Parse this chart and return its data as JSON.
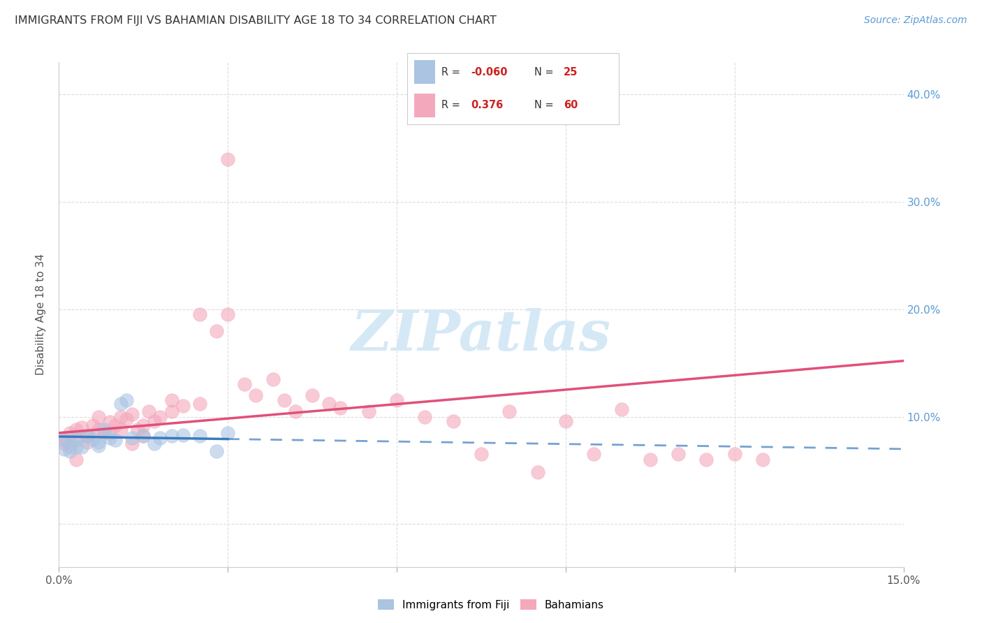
{
  "title": "IMMIGRANTS FROM FIJI VS BAHAMIAN DISABILITY AGE 18 TO 34 CORRELATION CHART",
  "source": "Source: ZipAtlas.com",
  "ylabel": "Disability Age 18 to 34",
  "xlim": [
    0.0,
    0.15
  ],
  "ylim": [
    -0.04,
    0.43
  ],
  "fiji_R": -0.06,
  "fiji_N": 25,
  "bahamian_R": 0.376,
  "bahamian_N": 60,
  "fiji_color": "#aac4e2",
  "bahamian_color": "#f4a8bc",
  "fiji_line_color": "#3a7bbf",
  "bahamian_line_color": "#e0507a",
  "background_color": "#ffffff",
  "grid_color": "#dddddd",
  "watermark_text": "ZIPatlas",
  "watermark_color": "#d5e8f5",
  "fiji_scatter_x": [
    0.001,
    0.002,
    0.003,
    0.004,
    0.005,
    0.006,
    0.007,
    0.007,
    0.008,
    0.009,
    0.01,
    0.011,
    0.012,
    0.013,
    0.015,
    0.017,
    0.018,
    0.02,
    0.022,
    0.025,
    0.028,
    0.03,
    0.001,
    0.002,
    0.003
  ],
  "fiji_scatter_y": [
    0.078,
    0.075,
    0.08,
    0.072,
    0.082,
    0.079,
    0.073,
    0.076,
    0.088,
    0.08,
    0.078,
    0.112,
    0.115,
    0.08,
    0.082,
    0.075,
    0.08,
    0.082,
    0.083,
    0.082,
    0.068,
    0.085,
    0.07,
    0.068,
    0.072
  ],
  "bahamian_scatter_x": [
    0.001,
    0.001,
    0.002,
    0.002,
    0.003,
    0.003,
    0.004,
    0.005,
    0.005,
    0.006,
    0.007,
    0.008,
    0.009,
    0.01,
    0.011,
    0.012,
    0.013,
    0.014,
    0.015,
    0.016,
    0.017,
    0.018,
    0.02,
    0.022,
    0.025,
    0.028,
    0.03,
    0.033,
    0.035,
    0.038,
    0.04,
    0.042,
    0.045,
    0.048,
    0.05,
    0.055,
    0.06,
    0.065,
    0.07,
    0.075,
    0.08,
    0.085,
    0.09,
    0.095,
    0.1,
    0.105,
    0.11,
    0.115,
    0.12,
    0.125,
    0.003,
    0.005,
    0.007,
    0.009,
    0.011,
    0.013,
    0.015,
    0.02,
    0.025,
    0.03
  ],
  "bahamian_scatter_y": [
    0.08,
    0.075,
    0.085,
    0.072,
    0.088,
    0.078,
    0.09,
    0.082,
    0.076,
    0.092,
    0.088,
    0.085,
    0.095,
    0.092,
    0.1,
    0.098,
    0.102,
    0.088,
    0.092,
    0.105,
    0.096,
    0.1,
    0.115,
    0.11,
    0.195,
    0.18,
    0.195,
    0.13,
    0.12,
    0.135,
    0.115,
    0.105,
    0.12,
    0.112,
    0.108,
    0.105,
    0.115,
    0.1,
    0.096,
    0.065,
    0.105,
    0.048,
    0.096,
    0.065,
    0.107,
    0.06,
    0.065,
    0.06,
    0.065,
    0.06,
    0.06,
    0.082,
    0.1,
    0.085,
    0.088,
    0.075,
    0.082,
    0.105,
    0.112,
    0.34
  ]
}
